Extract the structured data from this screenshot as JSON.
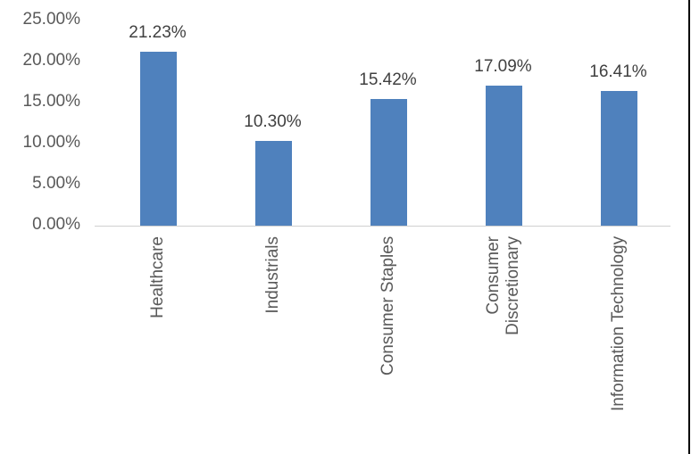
{
  "chart_data": {
    "type": "bar",
    "title": "",
    "xlabel": "",
    "ylabel": "",
    "categories": [
      "Healthcare",
      "Industrials",
      "Consumer Staples",
      "Consumer Discretionary",
      "Information Technology"
    ],
    "category_lines": [
      [
        "Healthcare"
      ],
      [
        "Industrials"
      ],
      [
        "Consumer Staples"
      ],
      [
        "Consumer",
        "Discretionary"
      ],
      [
        "Information Technology"
      ]
    ],
    "values": [
      21.23,
      10.3,
      15.42,
      17.09,
      16.41
    ],
    "data_labels": [
      "21.23%",
      "10.30%",
      "15.42%",
      "17.09%",
      "16.41%"
    ],
    "ylim": [
      0,
      25
    ],
    "yticks": [
      0,
      5,
      10,
      15,
      20,
      25
    ],
    "ytick_labels": [
      "0.00%",
      "5.00%",
      "10.00%",
      "15.00%",
      "20.00%",
      "25.00%"
    ],
    "grid": false,
    "legend": null,
    "bar_color": "#4f81bd"
  }
}
